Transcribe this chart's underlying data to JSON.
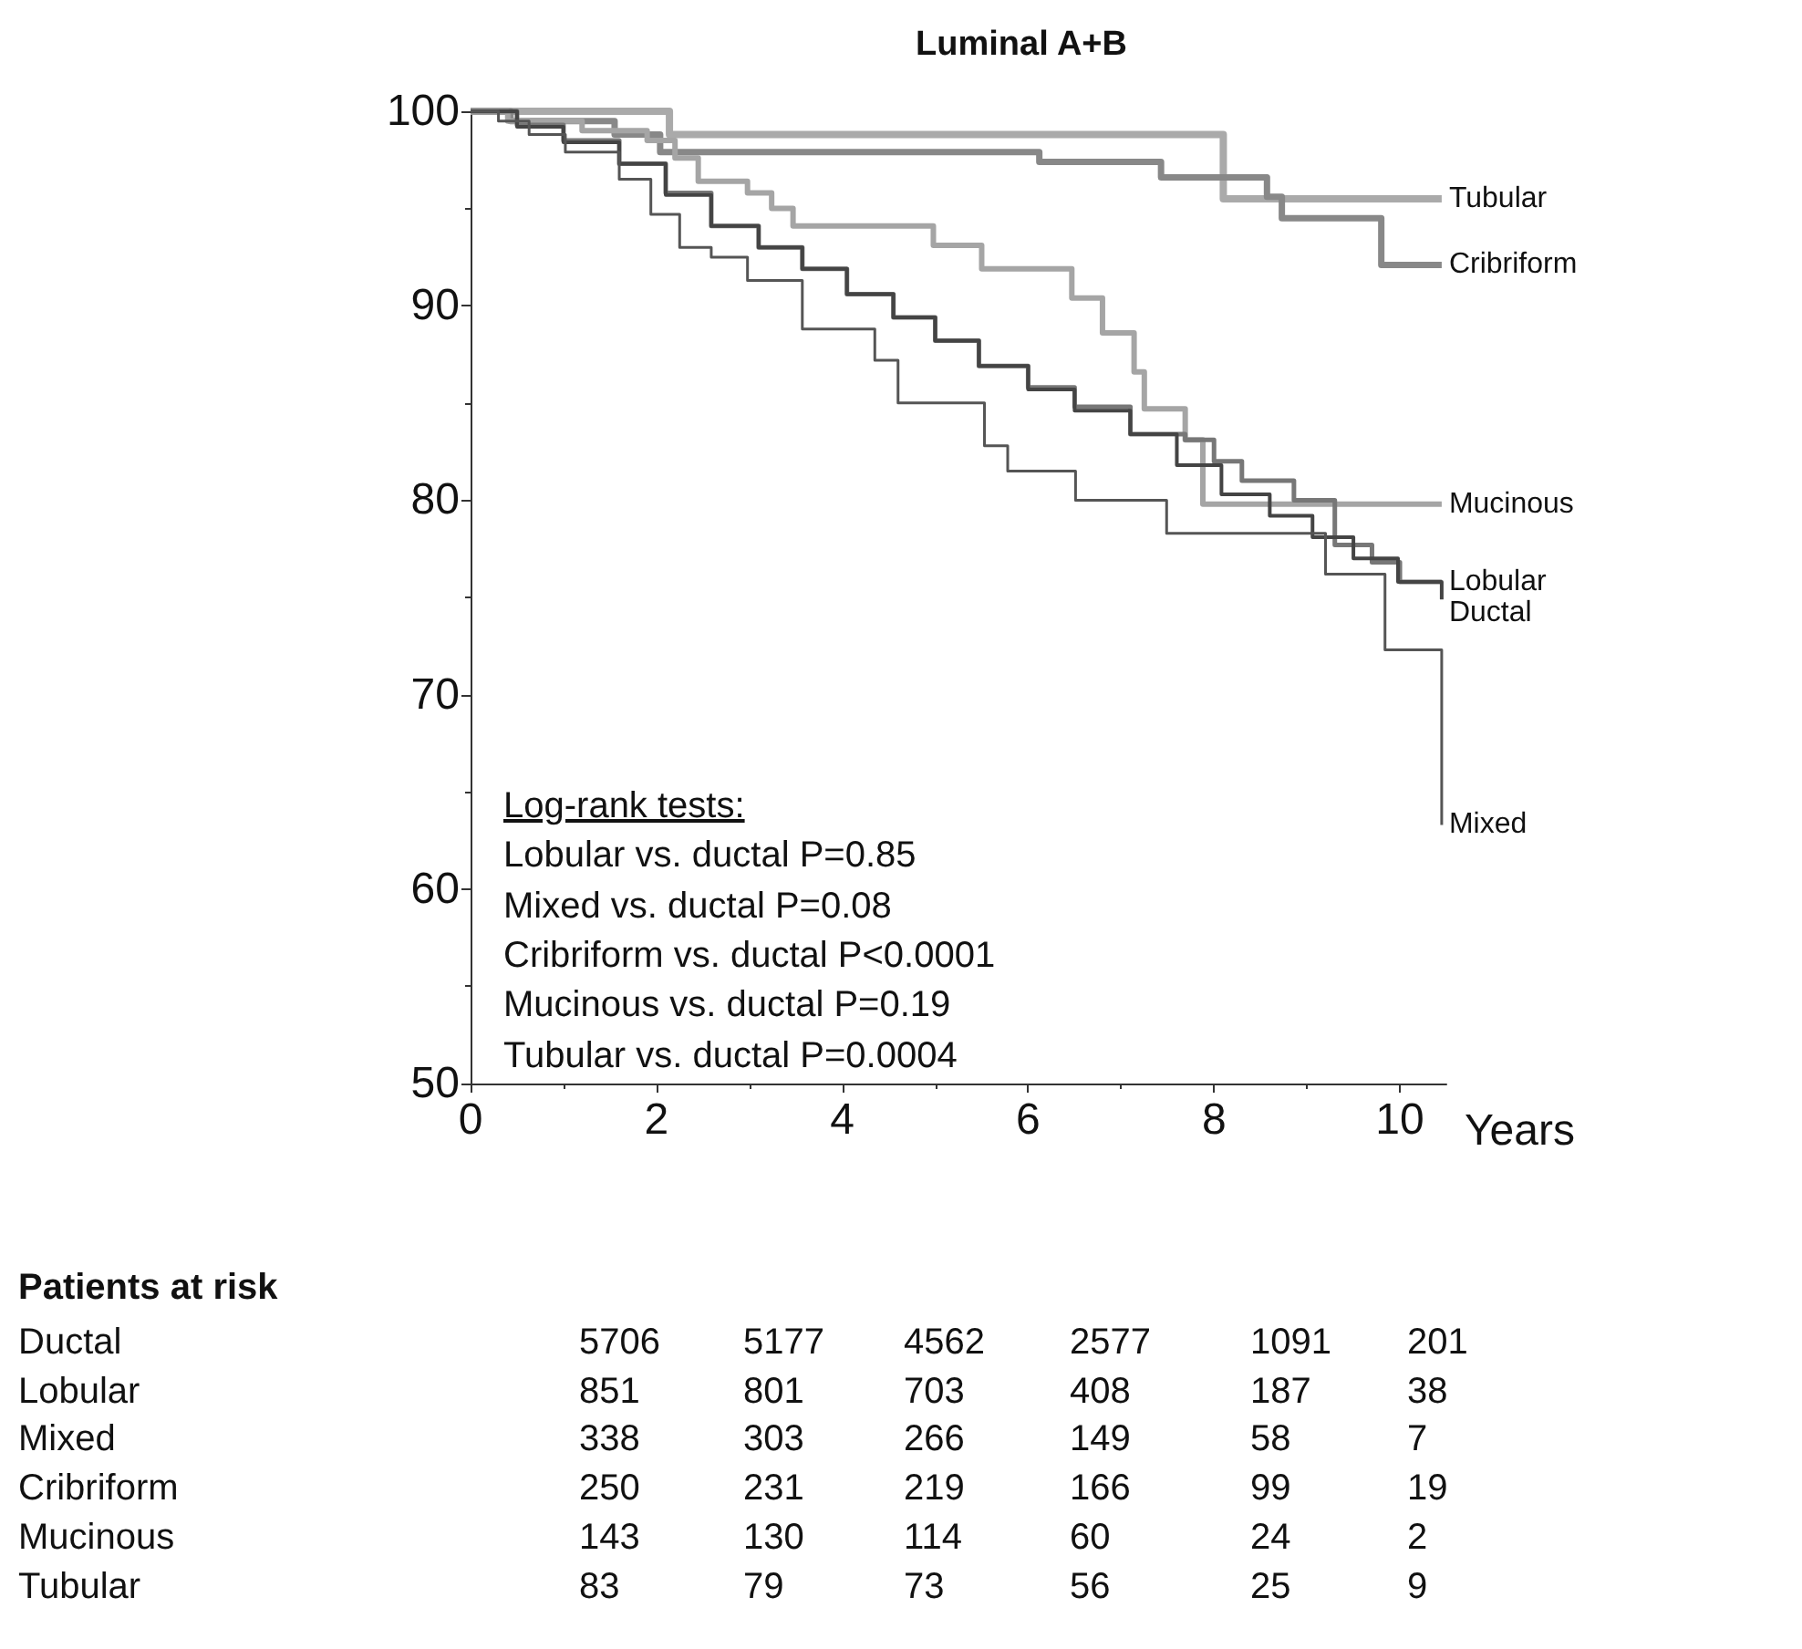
{
  "chart_data": {
    "type": "step",
    "title": "Luminal A+B",
    "xlabel": "Years",
    "xlim": [
      0,
      10.5
    ],
    "xticks": [
      0,
      2,
      4,
      6,
      8,
      10
    ],
    "ylim": [
      50,
      100
    ],
    "yticks": [
      50,
      60,
      70,
      80,
      90,
      100
    ],
    "grid": false,
    "legend": false,
    "marker": "none",
    "line_style": "solid",
    "series": [
      {
        "name": "Tubular",
        "color": "#aaaaaa",
        "x": [
          0,
          2.14,
          8.1,
          10.45
        ],
        "values": [
          100,
          98.8,
          95.5,
          95.5
        ]
      },
      {
        "name": "Cribriform",
        "color": "#888888",
        "x": [
          0,
          0.43,
          1.55,
          2.04,
          6.12,
          7.43,
          8.57,
          8.73,
          9.8,
          10.45
        ],
        "values": [
          100,
          99.5,
          98.8,
          97.9,
          97.4,
          96.6,
          95.6,
          94.5,
          92.1,
          92.1
        ]
      },
      {
        "name": "Mucinous",
        "color": "#a5a5a5",
        "x": [
          0,
          0.4,
          1.2,
          1.9,
          2.2,
          2.45,
          2.98,
          3.24,
          3.47,
          4.98,
          5.5,
          6.47,
          6.8,
          7.14,
          7.25,
          7.69,
          7.88,
          10.45
        ],
        "values": [
          100,
          99.5,
          99,
          98.5,
          97.6,
          96.4,
          95.8,
          95,
          94.1,
          93.1,
          91.9,
          90.4,
          88.6,
          86.6,
          84.7,
          83.1,
          79.8,
          79.8
        ]
      },
      {
        "name": "Lobular",
        "color": "#777777",
        "x": [
          0,
          0.5,
          1,
          1.6,
          2.1,
          2.59,
          3.1,
          3.57,
          4.05,
          4.55,
          5.0,
          5.47,
          6.0,
          6.5,
          7.1,
          7.69,
          8.0,
          8.3,
          8.86,
          9.3,
          9.7,
          10.0,
          10.45
        ],
        "values": [
          100,
          99.3,
          98.5,
          97.3,
          95.8,
          94.1,
          93.0,
          91.9,
          90.6,
          89.4,
          88.2,
          86.9,
          85.8,
          84.8,
          83.4,
          83.1,
          82.0,
          81.0,
          80.0,
          77.7,
          76.8,
          75.8,
          75.8
        ]
      },
      {
        "name": "Ductal",
        "color": "#444444",
        "x": [
          0,
          0.5,
          1,
          1.6,
          2.1,
          2.59,
          3.1,
          3.57,
          4.05,
          4.55,
          5.0,
          5.47,
          6.0,
          6.5,
          7.1,
          7.6,
          8.08,
          8.6,
          9.06,
          9.5,
          9.98,
          10.45
        ],
        "values": [
          100,
          99.2,
          98.4,
          97.3,
          95.7,
          94.1,
          93.0,
          91.9,
          90.6,
          89.4,
          88.2,
          86.9,
          85.7,
          84.6,
          83.4,
          81.8,
          80.3,
          79.2,
          78.1,
          77.0,
          75.8,
          74.9
        ]
      },
      {
        "name": "Mixed",
        "color": "#555555",
        "x": [
          0,
          0.3,
          0.63,
          1.02,
          1.6,
          1.94,
          2.25,
          2.59,
          2.98,
          3.57,
          4.35,
          4.6,
          5.53,
          5.78,
          6.51,
          7.49,
          9.2,
          9.84,
          10.45
        ],
        "values": [
          100,
          99.5,
          98.8,
          97.9,
          96.5,
          94.7,
          93.0,
          92.5,
          91.3,
          88.8,
          87.2,
          85.0,
          82.8,
          81.5,
          80.0,
          78.3,
          76.2,
          72.3,
          63.3
        ]
      }
    ],
    "annotations": [
      "Log-rank tests:",
      "Lobular vs. ductal P=0.85",
      "Mixed vs. ductal P=0.08",
      "Cribriform vs. ductal P<0.0001",
      "Mucinous vs. ductal P=0.19",
      "Tubular vs. ductal P=0.0004",
      "Patients at risk",
      "Ductal 5706 5177 4562 2577 1091 201",
      "Lobular 851 801 703 408 187 38",
      "Mixed 338 303 266 149 58 7",
      "Cribriform 250 231 219 166 99 19",
      "Mucinous 143 130 114 60 24 2",
      "Tubular 83 79 73 56 25 9"
    ]
  }
}
